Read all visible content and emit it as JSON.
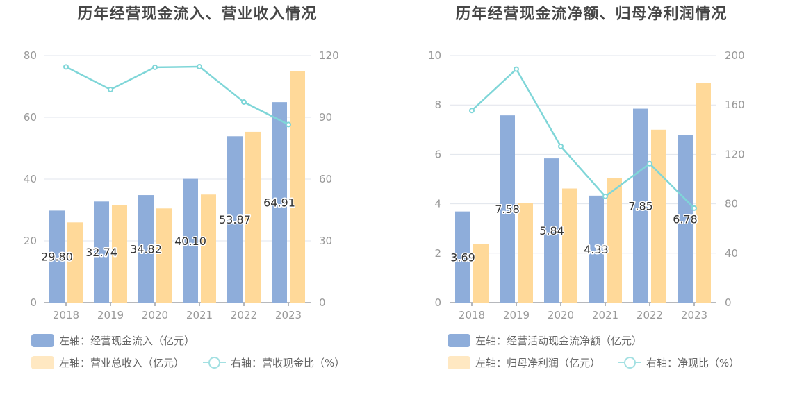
{
  "colors": {
    "blue": "#8eadda",
    "orange": "#ffd999",
    "line": "#7fd6d8",
    "grid": "#e1e4ec",
    "axis_text": "#999999"
  },
  "chart_data": [
    {
      "type": "bar",
      "title": "历年经营现金流入、营业收入情况",
      "categories": [
        "2018",
        "2019",
        "2020",
        "2021",
        "2022",
        "2023"
      ],
      "left_axis": {
        "ticks": [
          "0",
          "20",
          "40",
          "60",
          "80"
        ],
        "ylim": [
          0,
          80
        ]
      },
      "right_axis": {
        "ticks": [
          "0",
          "30",
          "60",
          "90",
          "120"
        ],
        "ylim": [
          0,
          120
        ]
      },
      "series": [
        {
          "name": "左轴：经营现金流入（亿元）",
          "type": "bar",
          "axis": "left",
          "color": "#8eadda",
          "values": [
            29.8,
            32.74,
            34.82,
            40.1,
            53.87,
            64.91
          ],
          "labels": [
            "29.80",
            "32.74",
            "34.82",
            "40.10",
            "53.87",
            "64.91"
          ]
        },
        {
          "name": "左轴：营业总收入（亿元）",
          "type": "bar",
          "axis": "left",
          "color": "#ffd999",
          "values": [
            26.0,
            31.6,
            30.5,
            35.0,
            55.3,
            75.0
          ]
        },
        {
          "name": "右轴：营收现金比（%）",
          "type": "line",
          "axis": "right",
          "color": "#7fd6d8",
          "values": [
            114.5,
            103.5,
            114.3,
            114.6,
            97.4,
            86.5
          ]
        }
      ],
      "grid": true,
      "legend_position": "bottom-left"
    },
    {
      "type": "bar",
      "title": "历年经营现金流净额、归母净利润情况",
      "categories": [
        "2018",
        "2019",
        "2020",
        "2021",
        "2022",
        "2023"
      ],
      "left_axis": {
        "ticks": [
          "0",
          "2",
          "4",
          "6",
          "8",
          "10"
        ],
        "ylim": [
          0,
          10
        ]
      },
      "right_axis": {
        "ticks": [
          "0",
          "40",
          "80",
          "120",
          "160",
          "200"
        ],
        "ylim": [
          0,
          200
        ]
      },
      "series": [
        {
          "name": "左轴：经营活动现金流净额（亿元）",
          "type": "bar",
          "axis": "left",
          "color": "#8eadda",
          "values": [
            3.69,
            7.58,
            5.84,
            4.33,
            7.85,
            6.78
          ],
          "labels": [
            "3.69",
            "7.58",
            "5.84",
            "4.33",
            "7.85",
            "6.78"
          ]
        },
        {
          "name": "左轴：归母净利润（亿元）",
          "type": "bar",
          "axis": "left",
          "color": "#ffd999",
          "values": [
            2.38,
            4.02,
            4.62,
            5.05,
            7.0,
            8.9
          ]
        },
        {
          "name": "右轴：净现比（%）",
          "type": "line",
          "axis": "right",
          "color": "#7fd6d8",
          "values": [
            155.5,
            189.0,
            126.5,
            86.0,
            112.5,
            76.5
          ]
        }
      ],
      "grid": true,
      "legend_position": "bottom-left"
    }
  ]
}
